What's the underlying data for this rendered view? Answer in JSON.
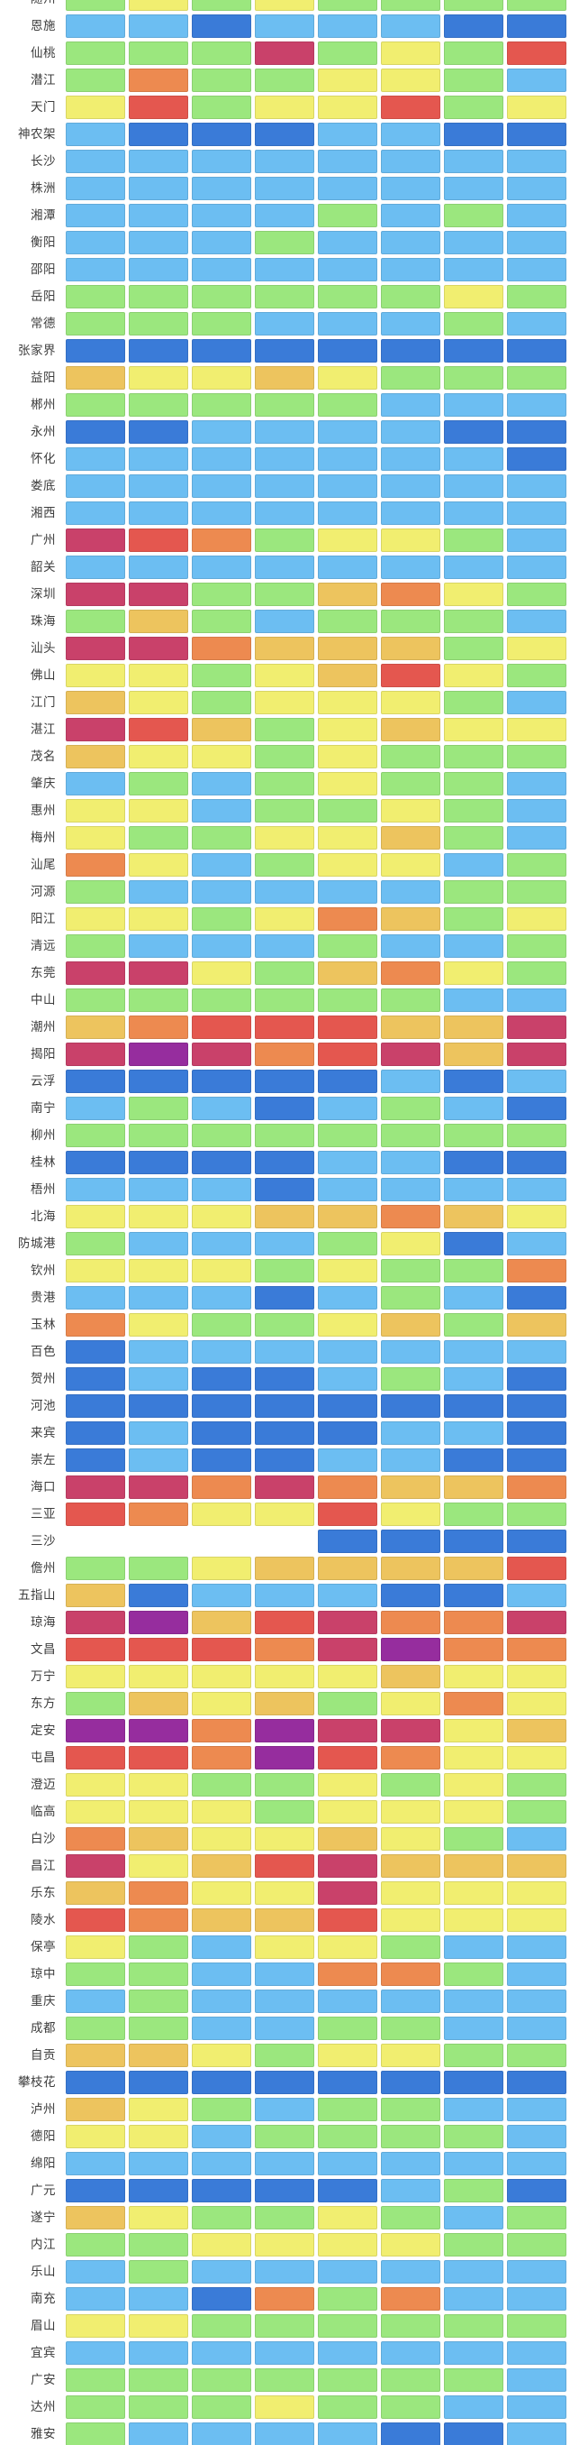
{
  "chart_data": {
    "type": "heatmap",
    "title": "",
    "columns": 8,
    "legend_position": "none",
    "grid": "cells-with-white-gaps",
    "palette": {
      "DB": "#3a7bd8",
      "LB": "#6cbef2",
      "G": "#9be77e",
      "Y": "#f1ee70",
      "A": "#edc45e",
      "O": "#ed8a50",
      "R": "#e4574f",
      "C": "#c9416a",
      "P": "#962d9e",
      "W": "#ffffff"
    },
    "palette_names": {
      "DB": "dark-blue",
      "LB": "light-blue",
      "G": "green",
      "Y": "yellow",
      "A": "amber",
      "O": "orange",
      "R": "red",
      "C": "crimson",
      "P": "purple",
      "W": "empty"
    },
    "rows": [
      {
        "label": "随州",
        "cells": [
          "G",
          "Y",
          "G",
          "Y",
          "G",
          "G",
          "G",
          "G"
        ]
      },
      {
        "label": "恩施",
        "cells": [
          "LB",
          "LB",
          "DB",
          "LB",
          "LB",
          "LB",
          "DB",
          "DB"
        ]
      },
      {
        "label": "仙桃",
        "cells": [
          "G",
          "G",
          "G",
          "C",
          "G",
          "Y",
          "G",
          "R"
        ]
      },
      {
        "label": "潜江",
        "cells": [
          "G",
          "O",
          "G",
          "G",
          "Y",
          "Y",
          "G",
          "LB"
        ]
      },
      {
        "label": "天门",
        "cells": [
          "Y",
          "R",
          "G",
          "Y",
          "Y",
          "R",
          "G",
          "Y"
        ]
      },
      {
        "label": "神农架",
        "cells": [
          "LB",
          "DB",
          "DB",
          "DB",
          "LB",
          "LB",
          "DB",
          "DB"
        ]
      },
      {
        "label": "长沙",
        "cells": [
          "LB",
          "LB",
          "LB",
          "LB",
          "LB",
          "LB",
          "LB",
          "LB"
        ]
      },
      {
        "label": "株洲",
        "cells": [
          "LB",
          "LB",
          "LB",
          "LB",
          "LB",
          "LB",
          "LB",
          "LB"
        ]
      },
      {
        "label": "湘潭",
        "cells": [
          "LB",
          "LB",
          "LB",
          "LB",
          "G",
          "LB",
          "G",
          "LB"
        ]
      },
      {
        "label": "衡阳",
        "cells": [
          "LB",
          "LB",
          "LB",
          "G",
          "LB",
          "LB",
          "LB",
          "LB"
        ]
      },
      {
        "label": "邵阳",
        "cells": [
          "LB",
          "LB",
          "LB",
          "LB",
          "LB",
          "LB",
          "LB",
          "LB"
        ]
      },
      {
        "label": "岳阳",
        "cells": [
          "G",
          "G",
          "G",
          "G",
          "G",
          "G",
          "Y",
          "G"
        ]
      },
      {
        "label": "常德",
        "cells": [
          "G",
          "G",
          "G",
          "LB",
          "LB",
          "LB",
          "G",
          "LB"
        ]
      },
      {
        "label": "张家界",
        "cells": [
          "DB",
          "DB",
          "DB",
          "DB",
          "DB",
          "DB",
          "DB",
          "DB"
        ]
      },
      {
        "label": "益阳",
        "cells": [
          "A",
          "Y",
          "Y",
          "A",
          "Y",
          "G",
          "G",
          "G"
        ]
      },
      {
        "label": "郴州",
        "cells": [
          "G",
          "G",
          "G",
          "G",
          "G",
          "LB",
          "LB",
          "LB"
        ]
      },
      {
        "label": "永州",
        "cells": [
          "DB",
          "DB",
          "LB",
          "LB",
          "LB",
          "LB",
          "DB",
          "DB"
        ]
      },
      {
        "label": "怀化",
        "cells": [
          "LB",
          "LB",
          "LB",
          "LB",
          "LB",
          "LB",
          "LB",
          "DB"
        ]
      },
      {
        "label": "娄底",
        "cells": [
          "LB",
          "LB",
          "LB",
          "LB",
          "LB",
          "LB",
          "LB",
          "LB"
        ]
      },
      {
        "label": "湘西",
        "cells": [
          "LB",
          "LB",
          "LB",
          "LB",
          "LB",
          "LB",
          "LB",
          "LB"
        ]
      },
      {
        "label": "广州",
        "cells": [
          "C",
          "R",
          "O",
          "G",
          "Y",
          "Y",
          "G",
          "LB"
        ]
      },
      {
        "label": "韶关",
        "cells": [
          "LB",
          "LB",
          "LB",
          "LB",
          "LB",
          "LB",
          "LB",
          "LB"
        ]
      },
      {
        "label": "深圳",
        "cells": [
          "C",
          "C",
          "G",
          "G",
          "A",
          "O",
          "Y",
          "G"
        ]
      },
      {
        "label": "珠海",
        "cells": [
          "G",
          "A",
          "G",
          "LB",
          "G",
          "G",
          "G",
          "LB"
        ]
      },
      {
        "label": "汕头",
        "cells": [
          "C",
          "C",
          "O",
          "A",
          "A",
          "A",
          "G",
          "Y"
        ]
      },
      {
        "label": "佛山",
        "cells": [
          "Y",
          "Y",
          "G",
          "Y",
          "A",
          "R",
          "Y",
          "G"
        ]
      },
      {
        "label": "江门",
        "cells": [
          "A",
          "Y",
          "G",
          "Y",
          "Y",
          "Y",
          "G",
          "LB"
        ]
      },
      {
        "label": "湛江",
        "cells": [
          "C",
          "R",
          "A",
          "G",
          "Y",
          "A",
          "Y",
          "Y"
        ]
      },
      {
        "label": "茂名",
        "cells": [
          "A",
          "Y",
          "Y",
          "G",
          "Y",
          "G",
          "G",
          "G"
        ]
      },
      {
        "label": "肇庆",
        "cells": [
          "LB",
          "G",
          "LB",
          "G",
          "Y",
          "G",
          "G",
          "LB"
        ]
      },
      {
        "label": "惠州",
        "cells": [
          "Y",
          "Y",
          "LB",
          "G",
          "G",
          "Y",
          "G",
          "LB"
        ]
      },
      {
        "label": "梅州",
        "cells": [
          "Y",
          "G",
          "G",
          "Y",
          "Y",
          "A",
          "G",
          "LB"
        ]
      },
      {
        "label": "汕尾",
        "cells": [
          "O",
          "Y",
          "LB",
          "G",
          "Y",
          "Y",
          "LB",
          "G"
        ]
      },
      {
        "label": "河源",
        "cells": [
          "G",
          "LB",
          "LB",
          "LB",
          "LB",
          "LB",
          "G",
          "G"
        ]
      },
      {
        "label": "阳江",
        "cells": [
          "Y",
          "Y",
          "G",
          "Y",
          "O",
          "A",
          "G",
          "Y"
        ]
      },
      {
        "label": "清远",
        "cells": [
          "G",
          "LB",
          "LB",
          "LB",
          "G",
          "LB",
          "LB",
          "G"
        ]
      },
      {
        "label": "东莞",
        "cells": [
          "C",
          "C",
          "Y",
          "G",
          "A",
          "O",
          "Y",
          "G"
        ]
      },
      {
        "label": "中山",
        "cells": [
          "G",
          "G",
          "G",
          "G",
          "G",
          "G",
          "LB",
          "LB"
        ]
      },
      {
        "label": "潮州",
        "cells": [
          "A",
          "O",
          "R",
          "R",
          "R",
          "A",
          "A",
          "C"
        ]
      },
      {
        "label": "揭阳",
        "cells": [
          "C",
          "P",
          "C",
          "O",
          "R",
          "C",
          "A",
          "C"
        ]
      },
      {
        "label": "云浮",
        "cells": [
          "DB",
          "DB",
          "DB",
          "DB",
          "DB",
          "LB",
          "DB",
          "LB"
        ]
      },
      {
        "label": "南宁",
        "cells": [
          "LB",
          "G",
          "LB",
          "DB",
          "LB",
          "G",
          "LB",
          "DB"
        ]
      },
      {
        "label": "柳州",
        "cells": [
          "G",
          "G",
          "G",
          "G",
          "G",
          "G",
          "G",
          "G"
        ]
      },
      {
        "label": "桂林",
        "cells": [
          "DB",
          "DB",
          "DB",
          "DB",
          "LB",
          "LB",
          "DB",
          "DB"
        ]
      },
      {
        "label": "梧州",
        "cells": [
          "LB",
          "LB",
          "LB",
          "DB",
          "LB",
          "LB",
          "LB",
          "LB"
        ]
      },
      {
        "label": "北海",
        "cells": [
          "Y",
          "Y",
          "Y",
          "A",
          "A",
          "O",
          "A",
          "Y"
        ]
      },
      {
        "label": "防城港",
        "cells": [
          "G",
          "LB",
          "LB",
          "LB",
          "G",
          "Y",
          "DB",
          "LB"
        ]
      },
      {
        "label": "钦州",
        "cells": [
          "Y",
          "Y",
          "Y",
          "G",
          "Y",
          "G",
          "G",
          "O"
        ]
      },
      {
        "label": "贵港",
        "cells": [
          "LB",
          "LB",
          "LB",
          "DB",
          "LB",
          "G",
          "LB",
          "DB"
        ]
      },
      {
        "label": "玉林",
        "cells": [
          "O",
          "Y",
          "G",
          "G",
          "Y",
          "A",
          "G",
          "A"
        ]
      },
      {
        "label": "百色",
        "cells": [
          "DB",
          "LB",
          "LB",
          "LB",
          "LB",
          "LB",
          "LB",
          "LB"
        ]
      },
      {
        "label": "贺州",
        "cells": [
          "DB",
          "LB",
          "DB",
          "DB",
          "LB",
          "G",
          "LB",
          "DB"
        ]
      },
      {
        "label": "河池",
        "cells": [
          "DB",
          "DB",
          "DB",
          "DB",
          "DB",
          "DB",
          "DB",
          "DB"
        ]
      },
      {
        "label": "来宾",
        "cells": [
          "DB",
          "LB",
          "DB",
          "DB",
          "DB",
          "LB",
          "LB",
          "DB"
        ]
      },
      {
        "label": "崇左",
        "cells": [
          "DB",
          "LB",
          "DB",
          "DB",
          "LB",
          "LB",
          "DB",
          "DB"
        ]
      },
      {
        "label": "海口",
        "cells": [
          "C",
          "C",
          "O",
          "C",
          "O",
          "A",
          "A",
          "O"
        ]
      },
      {
        "label": "三亚",
        "cells": [
          "R",
          "O",
          "Y",
          "Y",
          "R",
          "Y",
          "G",
          "G"
        ]
      },
      {
        "label": "三沙",
        "cells": [
          "W",
          "W",
          "W",
          "W",
          "DB",
          "DB",
          "DB",
          "DB"
        ]
      },
      {
        "label": "儋州",
        "cells": [
          "G",
          "G",
          "Y",
          "A",
          "A",
          "A",
          "A",
          "R"
        ]
      },
      {
        "label": "五指山",
        "cells": [
          "A",
          "DB",
          "LB",
          "LB",
          "LB",
          "DB",
          "DB",
          "LB"
        ]
      },
      {
        "label": "琼海",
        "cells": [
          "C",
          "P",
          "A",
          "R",
          "C",
          "O",
          "O",
          "C"
        ]
      },
      {
        "label": "文昌",
        "cells": [
          "R",
          "R",
          "R",
          "O",
          "C",
          "P",
          "O",
          "O"
        ]
      },
      {
        "label": "万宁",
        "cells": [
          "Y",
          "Y",
          "Y",
          "Y",
          "Y",
          "A",
          "Y",
          "Y"
        ]
      },
      {
        "label": "东方",
        "cells": [
          "G",
          "A",
          "Y",
          "A",
          "G",
          "Y",
          "O",
          "Y"
        ]
      },
      {
        "label": "定安",
        "cells": [
          "P",
          "P",
          "O",
          "P",
          "C",
          "C",
          "Y",
          "A"
        ]
      },
      {
        "label": "屯昌",
        "cells": [
          "R",
          "R",
          "O",
          "P",
          "R",
          "O",
          "Y",
          "Y"
        ]
      },
      {
        "label": "澄迈",
        "cells": [
          "Y",
          "Y",
          "G",
          "G",
          "Y",
          "G",
          "Y",
          "G"
        ]
      },
      {
        "label": "临高",
        "cells": [
          "Y",
          "Y",
          "Y",
          "G",
          "Y",
          "Y",
          "Y",
          "G"
        ]
      },
      {
        "label": "白沙",
        "cells": [
          "O",
          "A",
          "Y",
          "Y",
          "A",
          "Y",
          "G",
          "LB"
        ]
      },
      {
        "label": "昌江",
        "cells": [
          "C",
          "Y",
          "A",
          "R",
          "C",
          "A",
          "A",
          "A"
        ]
      },
      {
        "label": "乐东",
        "cells": [
          "A",
          "O",
          "Y",
          "Y",
          "C",
          "Y",
          "Y",
          "Y"
        ]
      },
      {
        "label": "陵水",
        "cells": [
          "R",
          "O",
          "A",
          "A",
          "R",
          "Y",
          "Y",
          "Y"
        ]
      },
      {
        "label": "保亭",
        "cells": [
          "Y",
          "G",
          "LB",
          "Y",
          "Y",
          "G",
          "LB",
          "LB"
        ]
      },
      {
        "label": "琼中",
        "cells": [
          "G",
          "G",
          "LB",
          "LB",
          "O",
          "O",
          "G",
          "LB"
        ]
      },
      {
        "label": "重庆",
        "cells": [
          "LB",
          "G",
          "LB",
          "LB",
          "LB",
          "LB",
          "LB",
          "LB"
        ]
      },
      {
        "label": "成都",
        "cells": [
          "G",
          "G",
          "LB",
          "LB",
          "G",
          "G",
          "LB",
          "LB"
        ]
      },
      {
        "label": "自贡",
        "cells": [
          "A",
          "A",
          "Y",
          "G",
          "Y",
          "Y",
          "G",
          "G"
        ]
      },
      {
        "label": "攀枝花",
        "cells": [
          "DB",
          "DB",
          "DB",
          "DB",
          "DB",
          "DB",
          "DB",
          "DB"
        ]
      },
      {
        "label": "泸州",
        "cells": [
          "A",
          "Y",
          "G",
          "LB",
          "G",
          "G",
          "LB",
          "LB"
        ]
      },
      {
        "label": "德阳",
        "cells": [
          "Y",
          "Y",
          "LB",
          "G",
          "G",
          "G",
          "G",
          "LB"
        ]
      },
      {
        "label": "绵阳",
        "cells": [
          "LB",
          "LB",
          "LB",
          "LB",
          "LB",
          "LB",
          "LB",
          "LB"
        ]
      },
      {
        "label": "广元",
        "cells": [
          "DB",
          "DB",
          "DB",
          "DB",
          "DB",
          "LB",
          "G",
          "DB"
        ]
      },
      {
        "label": "遂宁",
        "cells": [
          "A",
          "Y",
          "G",
          "G",
          "Y",
          "G",
          "LB",
          "G"
        ]
      },
      {
        "label": "内江",
        "cells": [
          "G",
          "G",
          "Y",
          "Y",
          "Y",
          "Y",
          "G",
          "G"
        ]
      },
      {
        "label": "乐山",
        "cells": [
          "LB",
          "G",
          "LB",
          "LB",
          "LB",
          "LB",
          "LB",
          "LB"
        ]
      },
      {
        "label": "南充",
        "cells": [
          "LB",
          "LB",
          "DB",
          "O",
          "G",
          "O",
          "LB",
          "LB"
        ]
      },
      {
        "label": "眉山",
        "cells": [
          "Y",
          "Y",
          "G",
          "G",
          "G",
          "G",
          "G",
          "G"
        ]
      },
      {
        "label": "宜宾",
        "cells": [
          "LB",
          "LB",
          "LB",
          "LB",
          "LB",
          "LB",
          "LB",
          "LB"
        ]
      },
      {
        "label": "广安",
        "cells": [
          "G",
          "G",
          "G",
          "G",
          "G",
          "G",
          "G",
          "LB"
        ]
      },
      {
        "label": "达州",
        "cells": [
          "G",
          "G",
          "G",
          "Y",
          "G",
          "G",
          "LB",
          "LB"
        ]
      },
      {
        "label": "雅安",
        "cells": [
          "G",
          "LB",
          "LB",
          "LB",
          "LB",
          "DB",
          "DB",
          "LB"
        ]
      }
    ]
  }
}
